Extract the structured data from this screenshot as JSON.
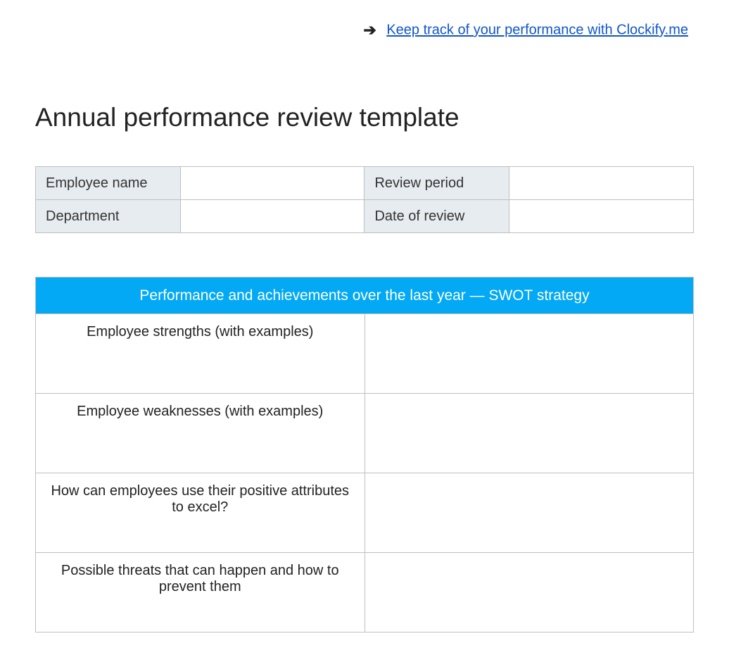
{
  "header": {
    "arrow_glyph": "➔",
    "link_text": "Keep track of your performance with Clockify.me"
  },
  "title": "Annual performance review template",
  "info_table": {
    "rows": [
      {
        "label1": "Employee name",
        "value1": "",
        "label2": "Review period",
        "value2": ""
      },
      {
        "label1": "Department",
        "value1": "",
        "label2": "Date of review",
        "value2": ""
      }
    ],
    "label_bg": "#e6ecef",
    "border_color": "#bfbfbf"
  },
  "swot": {
    "header": "Performance and achievements over the last year — SWOT strategy",
    "header_bg": "#03a9f4",
    "header_color": "#ffffff",
    "rows": [
      {
        "label": "Employee strengths (with examples)",
        "value": ""
      },
      {
        "label": "Employee weaknesses (with examples)",
        "value": ""
      },
      {
        "label": "How can employees use their positive attributes to excel?",
        "value": ""
      },
      {
        "label": "Possible threats that can happen and how to prevent them",
        "value": ""
      }
    ]
  },
  "styles": {
    "body_bg": "#ffffff",
    "text_color": "#222222",
    "link_color": "#1155cc",
    "border_color": "#bfbfbf"
  }
}
